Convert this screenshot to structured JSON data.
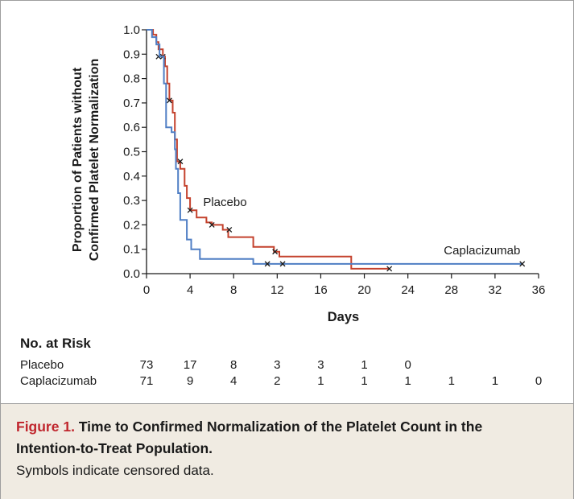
{
  "colors": {
    "placebo": "#c4422d",
    "caplacizumab": "#4f7ec4",
    "axis": "#1a1a1a",
    "caption_bg": "#f0ebe2",
    "figure_label": "#c0262d"
  },
  "chart_data": {
    "type": "line",
    "step": true,
    "title": "",
    "xlabel": "Days",
    "ylabel": [
      "Proportion of Patients without",
      "Confirmed Platelet Normalization"
    ],
    "xlim": [
      0,
      36
    ],
    "ylim": [
      0,
      1.0
    ],
    "x_ticks": [
      0,
      4,
      8,
      12,
      16,
      20,
      24,
      28,
      32,
      36
    ],
    "y_ticks": [
      0.0,
      0.1,
      0.2,
      0.3,
      0.4,
      0.5,
      0.6,
      0.7,
      0.8,
      0.9,
      1.0
    ],
    "grid": false,
    "series": [
      {
        "name": "Placebo",
        "color": "#c4422d",
        "points": [
          [
            0,
            1.0
          ],
          [
            0.6,
            1.0
          ],
          [
            0.6,
            0.98
          ],
          [
            0.9,
            0.98
          ],
          [
            0.9,
            0.95
          ],
          [
            1.1,
            0.95
          ],
          [
            1.1,
            0.92
          ],
          [
            1.5,
            0.92
          ],
          [
            1.5,
            0.89
          ],
          [
            1.7,
            0.89
          ],
          [
            1.7,
            0.85
          ],
          [
            1.9,
            0.85
          ],
          [
            1.9,
            0.78
          ],
          [
            2.1,
            0.78
          ],
          [
            2.1,
            0.71
          ],
          [
            2.4,
            0.71
          ],
          [
            2.4,
            0.66
          ],
          [
            2.6,
            0.66
          ],
          [
            2.6,
            0.55
          ],
          [
            2.8,
            0.55
          ],
          [
            2.8,
            0.46
          ],
          [
            3.1,
            0.46
          ],
          [
            3.1,
            0.43
          ],
          [
            3.5,
            0.43
          ],
          [
            3.5,
            0.36
          ],
          [
            3.7,
            0.36
          ],
          [
            3.7,
            0.31
          ],
          [
            4.0,
            0.31
          ],
          [
            4.0,
            0.26
          ],
          [
            4.6,
            0.26
          ],
          [
            4.6,
            0.23
          ],
          [
            5.5,
            0.23
          ],
          [
            5.5,
            0.21
          ],
          [
            6.0,
            0.21
          ],
          [
            6.0,
            0.2
          ],
          [
            7.0,
            0.2
          ],
          [
            7.0,
            0.18
          ],
          [
            7.5,
            0.18
          ],
          [
            7.5,
            0.15
          ],
          [
            9.8,
            0.15
          ],
          [
            9.8,
            0.11
          ],
          [
            11.7,
            0.11
          ],
          [
            11.7,
            0.09
          ],
          [
            12.2,
            0.09
          ],
          [
            12.2,
            0.07
          ],
          [
            18.8,
            0.07
          ],
          [
            18.8,
            0.02
          ],
          [
            22.3,
            0.02
          ]
        ],
        "censored": [
          [
            1.1,
            0.89
          ],
          [
            1.5,
            0.89
          ],
          [
            2.1,
            0.71
          ],
          [
            3.1,
            0.46
          ],
          [
            4.0,
            0.26
          ],
          [
            6.0,
            0.2
          ],
          [
            7.6,
            0.18
          ],
          [
            11.8,
            0.09
          ],
          [
            22.3,
            0.02
          ]
        ],
        "label": "Placebo"
      },
      {
        "name": "Caplacizumab",
        "color": "#4f7ec4",
        "points": [
          [
            0,
            1.0
          ],
          [
            0.5,
            1.0
          ],
          [
            0.5,
            0.97
          ],
          [
            0.9,
            0.97
          ],
          [
            0.9,
            0.94
          ],
          [
            1.2,
            0.94
          ],
          [
            1.2,
            0.89
          ],
          [
            1.6,
            0.89
          ],
          [
            1.6,
            0.78
          ],
          [
            1.8,
            0.78
          ],
          [
            1.8,
            0.6
          ],
          [
            2.3,
            0.6
          ],
          [
            2.3,
            0.58
          ],
          [
            2.6,
            0.58
          ],
          [
            2.6,
            0.51
          ],
          [
            2.7,
            0.51
          ],
          [
            2.7,
            0.43
          ],
          [
            2.9,
            0.43
          ],
          [
            2.9,
            0.33
          ],
          [
            3.1,
            0.33
          ],
          [
            3.1,
            0.22
          ],
          [
            3.7,
            0.22
          ],
          [
            3.7,
            0.14
          ],
          [
            4.1,
            0.14
          ],
          [
            4.1,
            0.1
          ],
          [
            4.9,
            0.1
          ],
          [
            4.9,
            0.06
          ],
          [
            9.8,
            0.06
          ],
          [
            9.8,
            0.04
          ],
          [
            34.5,
            0.04
          ]
        ],
        "censored": [
          [
            11.1,
            0.04
          ],
          [
            12.5,
            0.04
          ],
          [
            34.5,
            0.04
          ]
        ],
        "label": "Caplacizumab"
      }
    ]
  },
  "risk_table": {
    "title": "No. at Risk",
    "days": [
      0,
      4,
      8,
      12,
      16,
      20,
      24,
      28,
      32,
      36
    ],
    "rows": [
      {
        "label": "Placebo",
        "values": [
          "73",
          "17",
          "8",
          "3",
          "3",
          "1",
          "0"
        ]
      },
      {
        "label": "Caplacizumab",
        "values": [
          "71",
          "9",
          "4",
          "2",
          "1",
          "1",
          "1",
          "1",
          "1",
          "0"
        ]
      }
    ]
  },
  "caption": {
    "figure_label": "Figure 1.",
    "title": "Time to Confirmed Normalization of the Platelet Count in the Intention-to-Treat Population.",
    "note": "Symbols indicate censored data."
  }
}
